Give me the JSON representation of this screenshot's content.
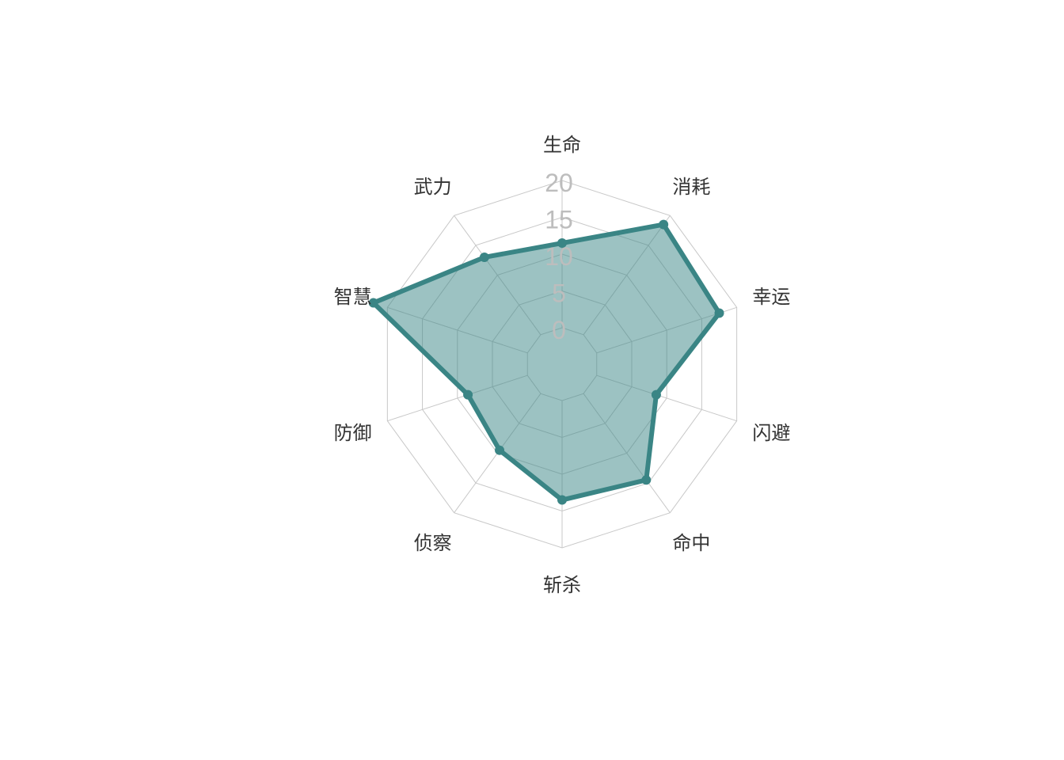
{
  "chart_data": {
    "type": "radar",
    "title": "",
    "axes": [
      "生命",
      "消耗",
      "幸运",
      "闪避",
      "命中",
      "斩杀",
      "侦察",
      "防御",
      "智慧",
      "武力"
    ],
    "series": [
      {
        "name": "",
        "values": [
          11.5,
          18.5,
          17.5,
          8.5,
          14.5,
          13.5,
          9.5,
          8.5,
          22,
          13
        ]
      }
    ],
    "range": [
      0,
      20
    ],
    "grid_levels": [
      0,
      5,
      10,
      15,
      20
    ],
    "tick_labels": [
      "0",
      "5",
      "10",
      "15",
      "20"
    ],
    "colors": {
      "series_stroke": "#3a8585",
      "series_fill": "#3a8585",
      "grid": "#c8c8c8",
      "tick_text": "#bdbdbd",
      "label_text": "#333333"
    },
    "grid": true,
    "legend": "none"
  }
}
